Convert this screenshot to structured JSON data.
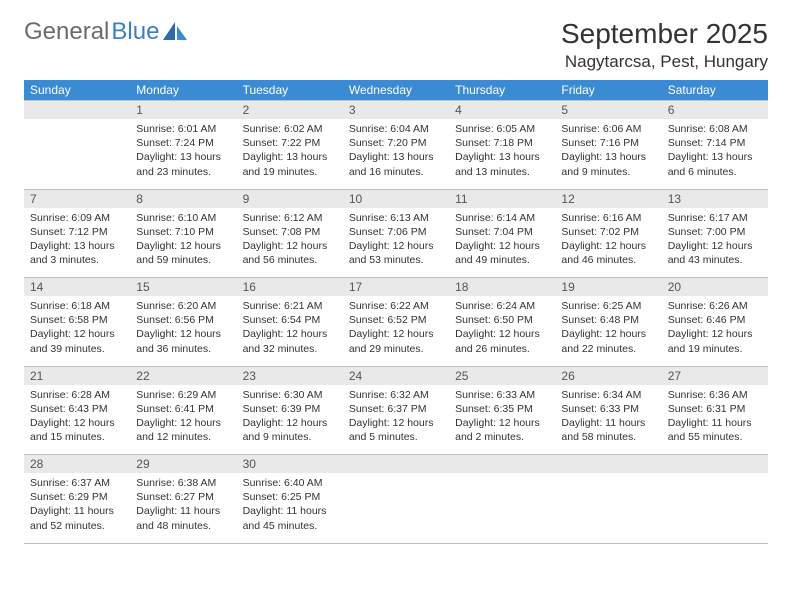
{
  "logo": {
    "word1": "General",
    "word2": "Blue"
  },
  "title": "September 2025",
  "location": "Nagytarcsa, Pest, Hungary",
  "day_headers": [
    "Sunday",
    "Monday",
    "Tuesday",
    "Wednesday",
    "Thursday",
    "Friday",
    "Saturday"
  ],
  "colors": {
    "header_bg": "#3b8bd4",
    "header_text": "#ffffff",
    "daynum_bg": "#e9e9e9",
    "border": "#bfbfbf",
    "logo_gray": "#6b6b6b",
    "logo_blue": "#3b7fc4"
  },
  "weeks": [
    [
      null,
      {
        "n": "1",
        "sr": "Sunrise: 6:01 AM",
        "ss": "Sunset: 7:24 PM",
        "d1": "Daylight: 13 hours",
        "d2": "and 23 minutes."
      },
      {
        "n": "2",
        "sr": "Sunrise: 6:02 AM",
        "ss": "Sunset: 7:22 PM",
        "d1": "Daylight: 13 hours",
        "d2": "and 19 minutes."
      },
      {
        "n": "3",
        "sr": "Sunrise: 6:04 AM",
        "ss": "Sunset: 7:20 PM",
        "d1": "Daylight: 13 hours",
        "d2": "and 16 minutes."
      },
      {
        "n": "4",
        "sr": "Sunrise: 6:05 AM",
        "ss": "Sunset: 7:18 PM",
        "d1": "Daylight: 13 hours",
        "d2": "and 13 minutes."
      },
      {
        "n": "5",
        "sr": "Sunrise: 6:06 AM",
        "ss": "Sunset: 7:16 PM",
        "d1": "Daylight: 13 hours",
        "d2": "and 9 minutes."
      },
      {
        "n": "6",
        "sr": "Sunrise: 6:08 AM",
        "ss": "Sunset: 7:14 PM",
        "d1": "Daylight: 13 hours",
        "d2": "and 6 minutes."
      }
    ],
    [
      {
        "n": "7",
        "sr": "Sunrise: 6:09 AM",
        "ss": "Sunset: 7:12 PM",
        "d1": "Daylight: 13 hours",
        "d2": "and 3 minutes."
      },
      {
        "n": "8",
        "sr": "Sunrise: 6:10 AM",
        "ss": "Sunset: 7:10 PM",
        "d1": "Daylight: 12 hours",
        "d2": "and 59 minutes."
      },
      {
        "n": "9",
        "sr": "Sunrise: 6:12 AM",
        "ss": "Sunset: 7:08 PM",
        "d1": "Daylight: 12 hours",
        "d2": "and 56 minutes."
      },
      {
        "n": "10",
        "sr": "Sunrise: 6:13 AM",
        "ss": "Sunset: 7:06 PM",
        "d1": "Daylight: 12 hours",
        "d2": "and 53 minutes."
      },
      {
        "n": "11",
        "sr": "Sunrise: 6:14 AM",
        "ss": "Sunset: 7:04 PM",
        "d1": "Daylight: 12 hours",
        "d2": "and 49 minutes."
      },
      {
        "n": "12",
        "sr": "Sunrise: 6:16 AM",
        "ss": "Sunset: 7:02 PM",
        "d1": "Daylight: 12 hours",
        "d2": "and 46 minutes."
      },
      {
        "n": "13",
        "sr": "Sunrise: 6:17 AM",
        "ss": "Sunset: 7:00 PM",
        "d1": "Daylight: 12 hours",
        "d2": "and 43 minutes."
      }
    ],
    [
      {
        "n": "14",
        "sr": "Sunrise: 6:18 AM",
        "ss": "Sunset: 6:58 PM",
        "d1": "Daylight: 12 hours",
        "d2": "and 39 minutes."
      },
      {
        "n": "15",
        "sr": "Sunrise: 6:20 AM",
        "ss": "Sunset: 6:56 PM",
        "d1": "Daylight: 12 hours",
        "d2": "and 36 minutes."
      },
      {
        "n": "16",
        "sr": "Sunrise: 6:21 AM",
        "ss": "Sunset: 6:54 PM",
        "d1": "Daylight: 12 hours",
        "d2": "and 32 minutes."
      },
      {
        "n": "17",
        "sr": "Sunrise: 6:22 AM",
        "ss": "Sunset: 6:52 PM",
        "d1": "Daylight: 12 hours",
        "d2": "and 29 minutes."
      },
      {
        "n": "18",
        "sr": "Sunrise: 6:24 AM",
        "ss": "Sunset: 6:50 PM",
        "d1": "Daylight: 12 hours",
        "d2": "and 26 minutes."
      },
      {
        "n": "19",
        "sr": "Sunrise: 6:25 AM",
        "ss": "Sunset: 6:48 PM",
        "d1": "Daylight: 12 hours",
        "d2": "and 22 minutes."
      },
      {
        "n": "20",
        "sr": "Sunrise: 6:26 AM",
        "ss": "Sunset: 6:46 PM",
        "d1": "Daylight: 12 hours",
        "d2": "and 19 minutes."
      }
    ],
    [
      {
        "n": "21",
        "sr": "Sunrise: 6:28 AM",
        "ss": "Sunset: 6:43 PM",
        "d1": "Daylight: 12 hours",
        "d2": "and 15 minutes."
      },
      {
        "n": "22",
        "sr": "Sunrise: 6:29 AM",
        "ss": "Sunset: 6:41 PM",
        "d1": "Daylight: 12 hours",
        "d2": "and 12 minutes."
      },
      {
        "n": "23",
        "sr": "Sunrise: 6:30 AM",
        "ss": "Sunset: 6:39 PM",
        "d1": "Daylight: 12 hours",
        "d2": "and 9 minutes."
      },
      {
        "n": "24",
        "sr": "Sunrise: 6:32 AM",
        "ss": "Sunset: 6:37 PM",
        "d1": "Daylight: 12 hours",
        "d2": "and 5 minutes."
      },
      {
        "n": "25",
        "sr": "Sunrise: 6:33 AM",
        "ss": "Sunset: 6:35 PM",
        "d1": "Daylight: 12 hours",
        "d2": "and 2 minutes."
      },
      {
        "n": "26",
        "sr": "Sunrise: 6:34 AM",
        "ss": "Sunset: 6:33 PM",
        "d1": "Daylight: 11 hours",
        "d2": "and 58 minutes."
      },
      {
        "n": "27",
        "sr": "Sunrise: 6:36 AM",
        "ss": "Sunset: 6:31 PM",
        "d1": "Daylight: 11 hours",
        "d2": "and 55 minutes."
      }
    ],
    [
      {
        "n": "28",
        "sr": "Sunrise: 6:37 AM",
        "ss": "Sunset: 6:29 PM",
        "d1": "Daylight: 11 hours",
        "d2": "and 52 minutes."
      },
      {
        "n": "29",
        "sr": "Sunrise: 6:38 AM",
        "ss": "Sunset: 6:27 PM",
        "d1": "Daylight: 11 hours",
        "d2": "and 48 minutes."
      },
      {
        "n": "30",
        "sr": "Sunrise: 6:40 AM",
        "ss": "Sunset: 6:25 PM",
        "d1": "Daylight: 11 hours",
        "d2": "and 45 minutes."
      },
      null,
      null,
      null,
      null
    ]
  ]
}
